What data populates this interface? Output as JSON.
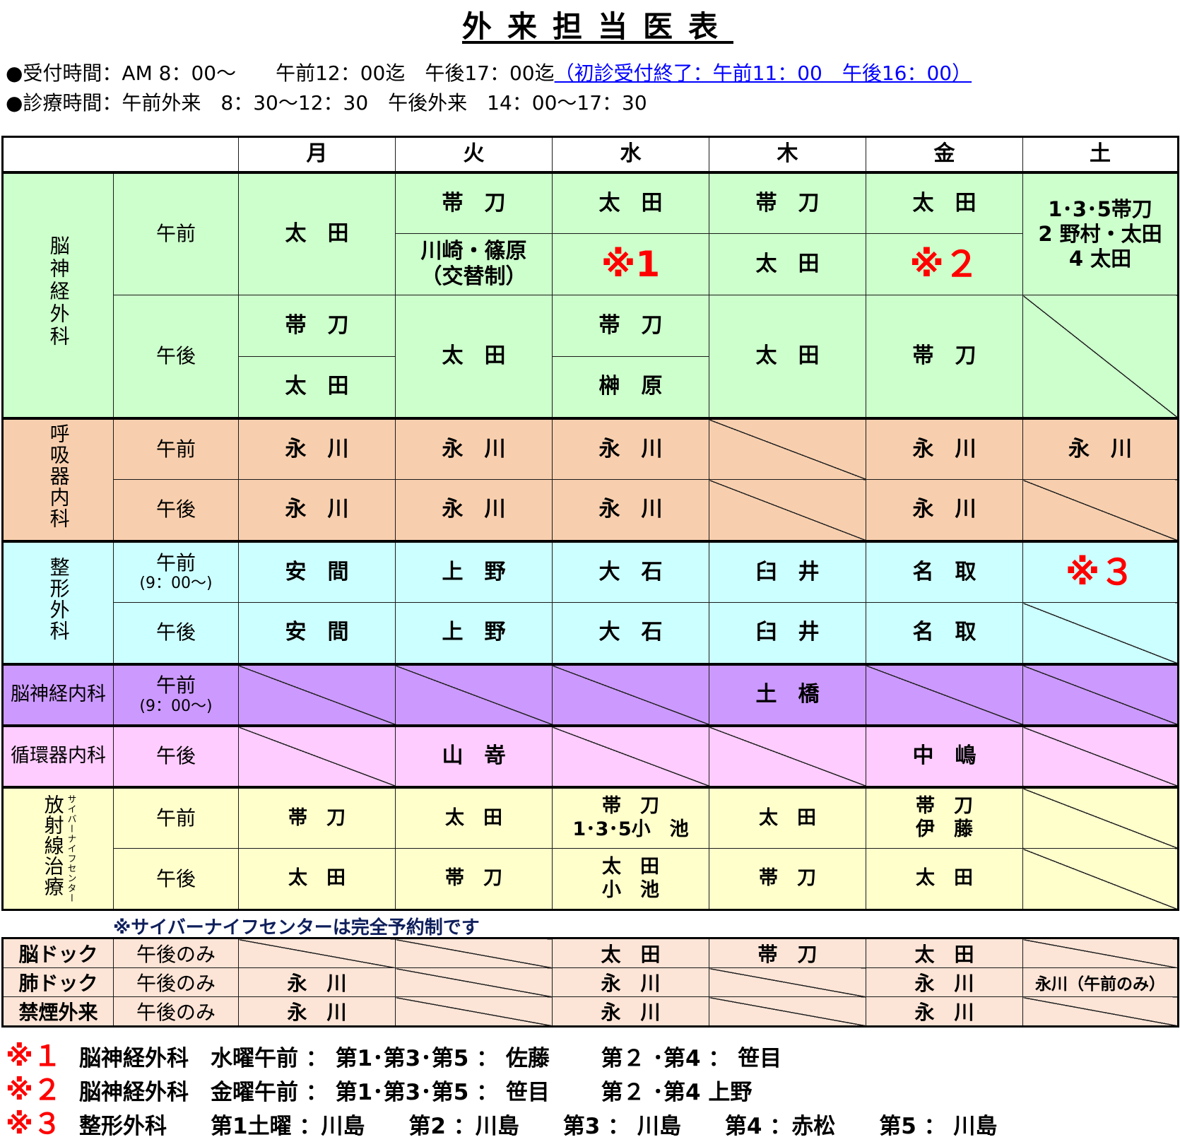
{
  "title": "外来担当医表",
  "info": {
    "reception": "●受付時間：AM 8：00～　　午前12：00迄　午後17：00迄",
    "first_visit": "（初診受付終了：午前11：00　午後16：00）",
    "consult": "●診療時間：午前外来　8：30～12：30　午後外来　14：00～17：30"
  },
  "days": [
    "月",
    "火",
    "水",
    "木",
    "金",
    "土"
  ],
  "labels": {
    "am": "午前",
    "pm": "午後",
    "am_9": "(9：00～)",
    "pm_only": "午後のみ"
  },
  "neurosurgery": {
    "dept": "脳神経外科",
    "am_mon": "太　田",
    "am_tue_1": "帯　刀",
    "am_tue_2a": "川崎・篠原",
    "am_tue_2b": "（交替制）",
    "am_wed_1": "太　田",
    "am_wed_2": "※1",
    "am_thu_1": "帯　刀",
    "am_thu_2": "太　田",
    "am_fri_1": "太　田",
    "am_fri_2": "※２",
    "sat_1": "1･3･5帯刀",
    "sat_2": "2 野村・太田",
    "sat_3": "4 太田",
    "pm_mon_1": "帯　刀",
    "pm_mon_2": "太　田",
    "pm_tue": "太　田",
    "pm_wed_1": "帯　刀",
    "pm_wed_2": "榊　原",
    "pm_thu": "太　田",
    "pm_fri": "帯　刀"
  },
  "respiratory": {
    "dept": "呼吸器内科",
    "name": "永　川"
  },
  "orthopedics": {
    "dept": "整形外科",
    "mon": "安　間",
    "tue": "上　野",
    "wed": "大　石",
    "thu": "臼　井",
    "fri": "名　取",
    "sat": "※３"
  },
  "neurology": {
    "dept": "脳神経内科",
    "thu": "土　橋"
  },
  "cardiology": {
    "dept": "循環器内科",
    "tue": "山　嵜",
    "fri": "中　嶋"
  },
  "radiation": {
    "dept": "放射線治療",
    "sub": "サイバーナイフセンター",
    "am_mon": "帯　刀",
    "am_tue": "太　田",
    "am_wed_1": "帯　刀",
    "am_wed_2": "1･3･5小　池",
    "am_thu": "太　田",
    "am_fri_1": "帯　刀",
    "am_fri_2": "伊　藤",
    "pm_mon": "太　田",
    "pm_tue": "帯　刀",
    "pm_wed_1": "太　田",
    "pm_wed_2": "小　池",
    "pm_thu": "帯　刀",
    "pm_fri": "太　田"
  },
  "cyber_note": "※サイバーナイフセンターは完全予約制です",
  "dock": {
    "brain": {
      "label": "脳ドック",
      "wed": "太　田",
      "thu": "帯　刀",
      "fri": "太　田"
    },
    "lung": {
      "label": "肺ドック",
      "mon": "永　川",
      "wed": "永　川",
      "fri": "永　川",
      "sat": "永川（午前のみ）"
    },
    "smoking": {
      "label": "禁煙外来",
      "mon": "永　川",
      "wed": "永　川",
      "fri": "永　川"
    }
  },
  "footnotes": [
    {
      "mark": "※１",
      "text": "脳神経外科　水曜午前 ： 第1･第3･第5 ： 佐藤　　 第２ ･第4 ： 笹目"
    },
    {
      "mark": "※２",
      "text": "脳神経外科　金曜午前 ： 第1･第3･第5 ： 笹目　　 第２ ･第4 上野"
    },
    {
      "mark": "※３",
      "text": "整形外科　　第1土曜 ：川島　　第2 ：川島　　第3 ： 川島　　第4 ：赤松　　第5 ： 川島"
    }
  ],
  "colors": {
    "neurosurgery": "#ccffcc",
    "respiratory": "#f8cfae",
    "orthopedics": "#ccffff",
    "neurology": "#cc99ff",
    "cardiology": "#ffccff",
    "radiation": "#ffffcc",
    "dock": "#fce4d6",
    "note_red": "#ff0000",
    "link_blue": "#0000ff"
  }
}
